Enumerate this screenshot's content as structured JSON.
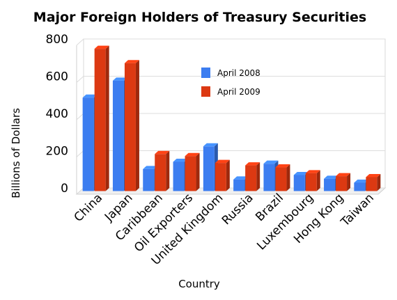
{
  "chart_data": {
    "type": "bar",
    "title": "Major Foreign Holders of Treasury Securities",
    "xlabel": "Country",
    "ylabel": "Billions of Dollars",
    "ylim": [
      0,
      800
    ],
    "yticks": [
      "0",
      "200",
      "400",
      "600",
      "800"
    ],
    "grid": true,
    "legend_position": "top-center",
    "categories": [
      "China",
      "Japan",
      "Caribbean",
      "Oil Exporters",
      "United Kingdom",
      "Russia",
      "Brazil",
      "Luxembourg",
      "Hong Kong",
      "Taiwan"
    ],
    "series": [
      {
        "name": "April 2008",
        "color": "#3c7df0",
        "values": [
          502,
          593,
          118,
          157,
          240,
          62,
          147,
          86,
          66,
          45
        ]
      },
      {
        "name": "April 2009",
        "color": "#dc3912",
        "values": [
          764,
          687,
          199,
          188,
          151,
          138,
          127,
          96,
          80,
          75
        ]
      }
    ]
  }
}
